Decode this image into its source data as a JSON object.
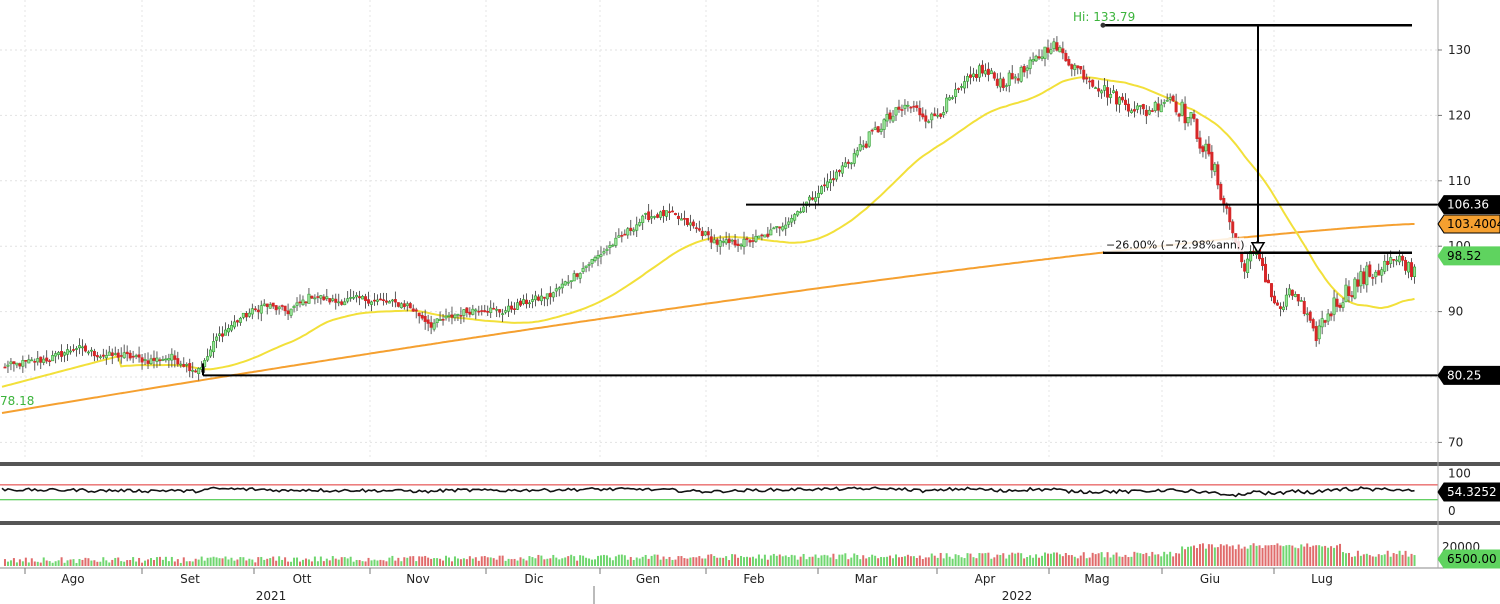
{
  "chart_data": {
    "type": "candlestick",
    "price_panel": {
      "y_ticks": [
        70,
        80,
        90,
        100,
        110,
        120,
        130
      ],
      "y_range": [
        67,
        139
      ],
      "high_label": "Hi: 133.79",
      "high_value": 133.79,
      "start_label": "78.18",
      "levels": [
        {
          "name": "support",
          "value": 80.25,
          "label": "80.25"
        },
        {
          "name": "resistance",
          "value": 106.36,
          "label": "106.36"
        },
        {
          "name": "peak",
          "value": 133.79
        },
        {
          "name": "target",
          "value": 99.0
        }
      ],
      "current": {
        "value": 98.52,
        "label": "98.52",
        "color": "#5fd35f"
      },
      "ma_long": {
        "value": 103.4004,
        "label": "103.4004",
        "color": "#f5a030"
      },
      "ma_short": {
        "color": "#f2e03a"
      },
      "annotation": "−26.00% (−72.98%ann.)"
    },
    "rsi_panel": {
      "y_ticks": [
        0,
        100
      ],
      "current_label": "54.3252",
      "upper_level": 70,
      "lower_level": 30
    },
    "volume_panel": {
      "tick_label": "20000",
      "current_label": "6500.00"
    },
    "x_axis": {
      "months": [
        "Ago",
        "Set",
        "Ott",
        "Nov",
        "Dic",
        "Gen",
        "Feb",
        "Mar",
        "Apr",
        "Mag",
        "Giu",
        "Lug"
      ],
      "years": [
        "2021",
        "2022"
      ]
    },
    "series_closes": [
      [
        0,
        81.5
      ],
      [
        8,
        82.2
      ],
      [
        16,
        82.8
      ],
      [
        25,
        84.5
      ],
      [
        33,
        83.3
      ],
      [
        41,
        83.3
      ],
      [
        49,
        82.5
      ],
      [
        57,
        83.0
      ],
      [
        65,
        81.0
      ],
      [
        68,
        82.2
      ],
      [
        72,
        86.0
      ],
      [
        80,
        89.0
      ],
      [
        88,
        91.0
      ],
      [
        96,
        90.0
      ],
      [
        104,
        92.5
      ],
      [
        112,
        91.5
      ],
      [
        120,
        92.0
      ],
      [
        128,
        91.5
      ],
      [
        136,
        91.0
      ],
      [
        144,
        88.0
      ],
      [
        152,
        89.5
      ],
      [
        160,
        90.5
      ],
      [
        168,
        90.0
      ],
      [
        176,
        91.5
      ],
      [
        184,
        92.5
      ],
      [
        192,
        95.5
      ],
      [
        200,
        98.5
      ],
      [
        208,
        101.5
      ],
      [
        216,
        104.5
      ],
      [
        224,
        105.0
      ],
      [
        232,
        103.0
      ],
      [
        240,
        100.5
      ],
      [
        248,
        100.5
      ],
      [
        256,
        101.5
      ],
      [
        264,
        104.0
      ],
      [
        272,
        107.5
      ],
      [
        280,
        111.0
      ],
      [
        288,
        115.0
      ],
      [
        296,
        119.0
      ],
      [
        304,
        121.5
      ],
      [
        312,
        119.5
      ],
      [
        320,
        123.0
      ],
      [
        328,
        127.0
      ],
      [
        336,
        125.0
      ],
      [
        344,
        127.0
      ],
      [
        352,
        131.0
      ],
      [
        360,
        127.5
      ],
      [
        368,
        124.5
      ],
      [
        376,
        122.0
      ],
      [
        384,
        120.5
      ],
      [
        392,
        123.0
      ],
      [
        400,
        118.5
      ],
      [
        408,
        110.0
      ],
      [
        416,
        97.5
      ],
      [
        422,
        98.5
      ],
      [
        428,
        90.0
      ],
      [
        434,
        93.0
      ],
      [
        440,
        86.0
      ],
      [
        446,
        90.5
      ],
      [
        452,
        93.5
      ],
      [
        458,
        95.5
      ],
      [
        466,
        97.5
      ],
      [
        474,
        96.5
      ]
    ]
  }
}
